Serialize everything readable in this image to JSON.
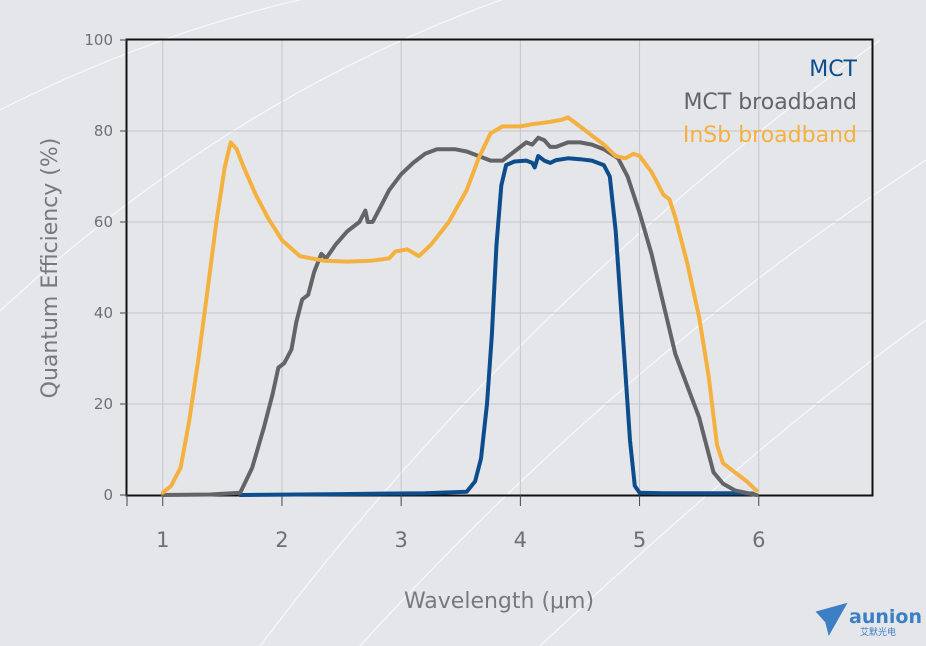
{
  "chart_data": {
    "type": "line",
    "xlabel": "Wavelength (μm)",
    "ylabel": "Quantum Efficiency (%)",
    "xlim": [
      0.7,
      6.95
    ],
    "ylim": [
      0,
      100
    ],
    "xticks": [
      1,
      2,
      3,
      4,
      5,
      6
    ],
    "yticks": [
      0,
      20,
      40,
      60,
      80,
      100
    ],
    "grid": true,
    "legend_position": "top-right",
    "series": [
      {
        "name": "MCT",
        "color": "#0e4d8c",
        "points": [
          [
            1.65,
            0
          ],
          [
            2.5,
            0.2
          ],
          [
            3.2,
            0.4
          ],
          [
            3.55,
            0.7
          ],
          [
            3.62,
            3
          ],
          [
            3.67,
            8
          ],
          [
            3.72,
            20
          ],
          [
            3.76,
            35
          ],
          [
            3.8,
            55
          ],
          [
            3.84,
            68
          ],
          [
            3.88,
            72.5
          ],
          [
            3.95,
            73.3
          ],
          [
            4.05,
            73.5
          ],
          [
            4.1,
            73
          ],
          [
            4.12,
            72
          ],
          [
            4.15,
            74.5
          ],
          [
            4.2,
            73.5
          ],
          [
            4.25,
            73
          ],
          [
            4.3,
            73.6
          ],
          [
            4.4,
            74
          ],
          [
            4.5,
            73.8
          ],
          [
            4.6,
            73.5
          ],
          [
            4.7,
            72.5
          ],
          [
            4.75,
            70
          ],
          [
            4.8,
            58
          ],
          [
            4.86,
            35
          ],
          [
            4.92,
            12
          ],
          [
            4.96,
            2
          ],
          [
            5.0,
            0.5
          ],
          [
            5.2,
            0.4
          ],
          [
            5.5,
            0.4
          ],
          [
            5.8,
            0.4
          ],
          [
            5.95,
            0.3
          ]
        ]
      },
      {
        "name": "MCT broadband",
        "color": "#636466",
        "points": [
          [
            1.0,
            0
          ],
          [
            1.4,
            0.1
          ],
          [
            1.65,
            0.5
          ],
          [
            1.75,
            6
          ],
          [
            1.85,
            15
          ],
          [
            1.92,
            22
          ],
          [
            1.97,
            28
          ],
          [
            2.02,
            29
          ],
          [
            2.08,
            32
          ],
          [
            2.12,
            38
          ],
          [
            2.17,
            43
          ],
          [
            2.22,
            44
          ],
          [
            2.27,
            49
          ],
          [
            2.33,
            53
          ],
          [
            2.37,
            52
          ],
          [
            2.45,
            55
          ],
          [
            2.55,
            58
          ],
          [
            2.65,
            60
          ],
          [
            2.7,
            62.5
          ],
          [
            2.72,
            60
          ],
          [
            2.76,
            60
          ],
          [
            2.82,
            63
          ],
          [
            2.9,
            67
          ],
          [
            3.0,
            70.5
          ],
          [
            3.1,
            73
          ],
          [
            3.2,
            75
          ],
          [
            3.3,
            76
          ],
          [
            3.45,
            76
          ],
          [
            3.55,
            75.5
          ],
          [
            3.65,
            74.5
          ],
          [
            3.75,
            73.5
          ],
          [
            3.85,
            73.5
          ],
          [
            3.95,
            75.5
          ],
          [
            4.05,
            77.5
          ],
          [
            4.1,
            77
          ],
          [
            4.15,
            78.5
          ],
          [
            4.2,
            78
          ],
          [
            4.25,
            76.5
          ],
          [
            4.3,
            76.5
          ],
          [
            4.4,
            77.5
          ],
          [
            4.5,
            77.5
          ],
          [
            4.6,
            77
          ],
          [
            4.7,
            76
          ],
          [
            4.82,
            74
          ],
          [
            4.9,
            70
          ],
          [
            5.0,
            62
          ],
          [
            5.1,
            53
          ],
          [
            5.2,
            42
          ],
          [
            5.3,
            31
          ],
          [
            5.4,
            24
          ],
          [
            5.5,
            17
          ],
          [
            5.55,
            12
          ],
          [
            5.62,
            5
          ],
          [
            5.7,
            2.5
          ],
          [
            5.8,
            1
          ],
          [
            5.98,
            0
          ]
        ]
      },
      {
        "name": "InSb broadband",
        "color": "#f4b13f",
        "points": [
          [
            1.0,
            0.5
          ],
          [
            1.07,
            2
          ],
          [
            1.15,
            6
          ],
          [
            1.22,
            16
          ],
          [
            1.3,
            30
          ],
          [
            1.38,
            46
          ],
          [
            1.45,
            60
          ],
          [
            1.52,
            72
          ],
          [
            1.57,
            77.5
          ],
          [
            1.62,
            76
          ],
          [
            1.68,
            72
          ],
          [
            1.78,
            66
          ],
          [
            1.88,
            61
          ],
          [
            2.0,
            56
          ],
          [
            2.15,
            52.5
          ],
          [
            2.35,
            51.5
          ],
          [
            2.55,
            51.3
          ],
          [
            2.75,
            51.5
          ],
          [
            2.9,
            52
          ],
          [
            2.95,
            53.5
          ],
          [
            3.05,
            54
          ],
          [
            3.15,
            52.5
          ],
          [
            3.25,
            55
          ],
          [
            3.4,
            60
          ],
          [
            3.55,
            67
          ],
          [
            3.65,
            74
          ],
          [
            3.75,
            79.5
          ],
          [
            3.85,
            81
          ],
          [
            4.0,
            81
          ],
          [
            4.1,
            81.5
          ],
          [
            4.25,
            82
          ],
          [
            4.35,
            82.5
          ],
          [
            4.4,
            83
          ],
          [
            4.5,
            81
          ],
          [
            4.6,
            79
          ],
          [
            4.7,
            77
          ],
          [
            4.8,
            74.5
          ],
          [
            4.88,
            74
          ],
          [
            4.95,
            75
          ],
          [
            5.0,
            74.5
          ],
          [
            5.1,
            71
          ],
          [
            5.2,
            66
          ],
          [
            5.25,
            65
          ],
          [
            5.3,
            61
          ],
          [
            5.4,
            51
          ],
          [
            5.5,
            39
          ],
          [
            5.58,
            26
          ],
          [
            5.65,
            11
          ],
          [
            5.7,
            7
          ],
          [
            5.8,
            5
          ],
          [
            5.9,
            3
          ],
          [
            5.98,
            1
          ]
        ]
      }
    ]
  },
  "logo": {
    "name": "aunion",
    "subtitle": "艾默光电"
  }
}
